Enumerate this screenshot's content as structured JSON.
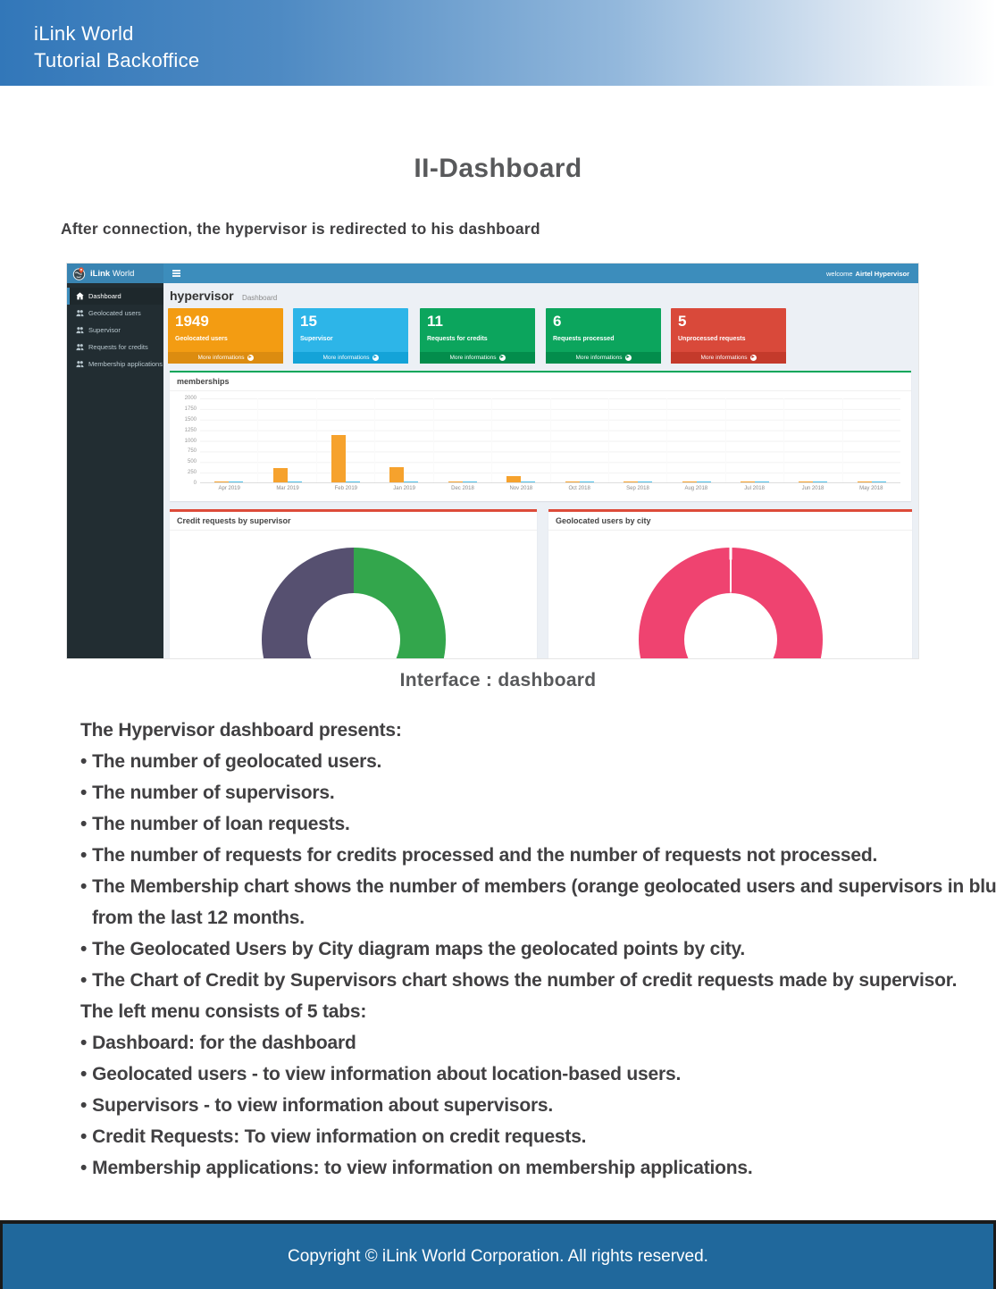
{
  "page": {
    "header": {
      "line1": "iLink World",
      "line2": "Tutorial Backoffice"
    },
    "title": "II-Dashboard",
    "subtitle": "After connection, the hypervisor is redirected to his dashboard",
    "caption": "Interface : dashboard",
    "body_lines": [
      {
        "text": "The Hypervisor dashboard presents:",
        "bullet": false,
        "indent": false
      },
      {
        "text": "The number of geolocated users.",
        "bullet": true,
        "indent": false
      },
      {
        "text": "The number of supervisors.",
        "bullet": true,
        "indent": false
      },
      {
        "text": "The number of loan requests.",
        "bullet": true,
        "indent": false
      },
      {
        "text": "The number of requests for credits processed and the number of requests not processed.",
        "bullet": true,
        "indent": false
      },
      {
        "text": "The Membership chart shows the number of members (orange geolocated users and supervisors in blue)",
        "bullet": true,
        "indent": false
      },
      {
        "text": "from the last 12 months.",
        "bullet": false,
        "indent": true
      },
      {
        "text": "The Geolocated Users by City diagram maps the geolocated points by city.",
        "bullet": true,
        "indent": false
      },
      {
        "text": "The Chart of Credit by Supervisors chart shows the number of credit requests made by supervisor.",
        "bullet": true,
        "indent": false
      },
      {
        "text": "The left menu consists of 5 tabs:",
        "bullet": false,
        "indent": false
      },
      {
        "text": "Dashboard: for the dashboard",
        "bullet": true,
        "indent": false
      },
      {
        "text": "Geolocated users - to view information about location-based users.",
        "bullet": true,
        "indent": false
      },
      {
        "text": "Supervisors - to view information about supervisors.",
        "bullet": true,
        "indent": false
      },
      {
        "text": "Credit Requests: To view information on credit requests.",
        "bullet": true,
        "indent": false
      },
      {
        "text": "Membership applications: to view information on membership applications.",
        "bullet": true,
        "indent": false
      }
    ],
    "footer": "Copyright © iLink World Corporation. All rights reserved."
  },
  "dashboard": {
    "brand": {
      "bold": "iLink",
      "light": "World"
    },
    "navbar": {
      "welcome_prefix": "welcome",
      "user": "Airtel Hypervisor"
    },
    "sidebar": {
      "items": [
        {
          "label": "Dashboard",
          "icon": "dashboard-icon",
          "active": true
        },
        {
          "label": "Geolocated users",
          "icon": "users-icon",
          "active": false
        },
        {
          "label": "Supervisor",
          "icon": "users-icon",
          "active": false
        },
        {
          "label": "Requests for credits",
          "icon": "users-icon",
          "active": false
        },
        {
          "label": "Membership applications",
          "icon": "users-icon",
          "active": false
        }
      ]
    },
    "content_header": {
      "title": "hypervisor",
      "subtitle": "Dashboard"
    },
    "more_info_label": "More informations",
    "stat_cards": [
      {
        "value": "1949",
        "label": "Geolocated users",
        "color": "#f39c12",
        "footer_color": "#dc8c10"
      },
      {
        "value": "15",
        "label": "Supervisor",
        "color": "#2db5e8",
        "footer_color": "#14a3d8"
      },
      {
        "value": "11",
        "label": "Requests for credits",
        "color": "#0ca55d",
        "footer_color": "#038d4c"
      },
      {
        "value": "6",
        "label": "Requests processed",
        "color": "#0ca55d",
        "footer_color": "#038d4c"
      },
      {
        "value": "5",
        "label": "Unprocessed requests",
        "color": "#d9493a",
        "footer_color": "#c43a2b"
      }
    ]
  },
  "chart_data": [
    {
      "type": "bar",
      "title": "memberships",
      "categories": [
        "Apr 2019",
        "Mar 2019",
        "Feb 2019",
        "Jan 2019",
        "Dec 2018",
        "Nov 2018",
        "Oct 2018",
        "Sep 2018",
        "Aug 2018",
        "Jul 2018",
        "Jun 2018",
        "May 2018"
      ],
      "series": [
        {
          "name": "geolocated users (orange)",
          "color": "#f6a22d",
          "values": [
            15,
            330,
            1120,
            350,
            20,
            150,
            15,
            15,
            15,
            15,
            15,
            15
          ]
        },
        {
          "name": "supervisors (blue)",
          "color": "#4fc1e9",
          "values": [
            15,
            15,
            15,
            30,
            15,
            15,
            15,
            15,
            15,
            15,
            15,
            15
          ]
        }
      ],
      "ylim": [
        0,
        2000
      ],
      "yticks": [
        0,
        250,
        500,
        750,
        1000,
        1250,
        1500,
        1750,
        2000
      ],
      "grid": true,
      "legend": "none"
    },
    {
      "type": "pie",
      "title": "Credit requests by supervisor",
      "slices": [
        {
          "color": "#33a64c",
          "percent": 50
        },
        {
          "color": "#565070",
          "percent": 50
        }
      ],
      "donut": true
    },
    {
      "type": "pie",
      "title": "Geolocated users by city",
      "slices": [
        {
          "color": "#ef4370",
          "percent": 100
        }
      ],
      "donut": true,
      "top_divider": true
    }
  ]
}
